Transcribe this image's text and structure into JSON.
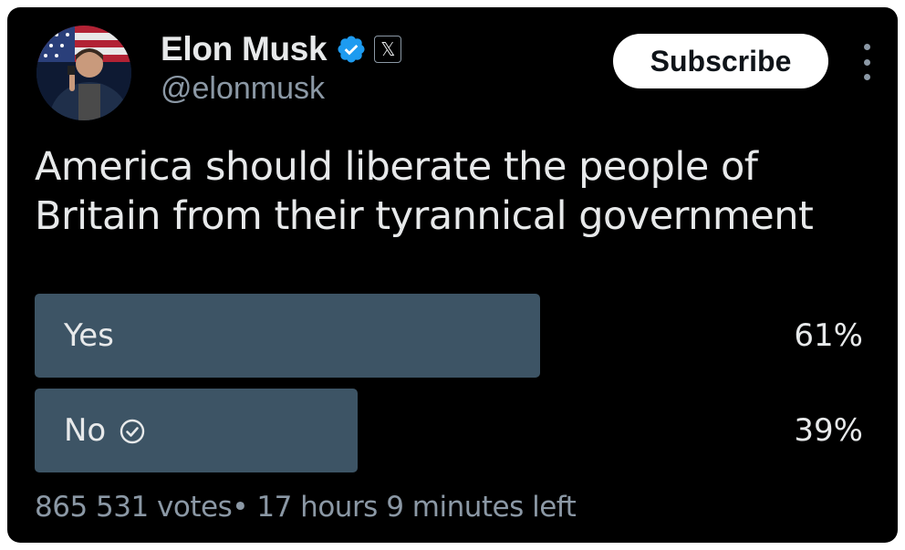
{
  "author": {
    "display_name": "Elon Musk",
    "handle": "@elonmusk",
    "verified_icon": "verified-badge-icon",
    "affiliation_icon": "x-logo-icon",
    "affiliation_glyph": "𝕏"
  },
  "header": {
    "subscribe_label": "Subscribe",
    "more_icon": "more-options-icon"
  },
  "tweet": {
    "line1": "America should liberate the people of",
    "line2": "Britain from their tyrannical government"
  },
  "poll": {
    "options": [
      {
        "label": "Yes",
        "percent_text": "61%",
        "share": 0.61,
        "selected": false
      },
      {
        "label": "No",
        "percent_text": "39%",
        "share": 0.39,
        "selected": true,
        "selected_icon": "check-circle-icon"
      }
    ],
    "footer": "865 531 votes• 17 hours 9 minutes left"
  },
  "colors": {
    "background": "#000000",
    "poll_bar": "#3d5465",
    "verified": "#1d9bf0",
    "secondary_text": "#8b98a5"
  }
}
